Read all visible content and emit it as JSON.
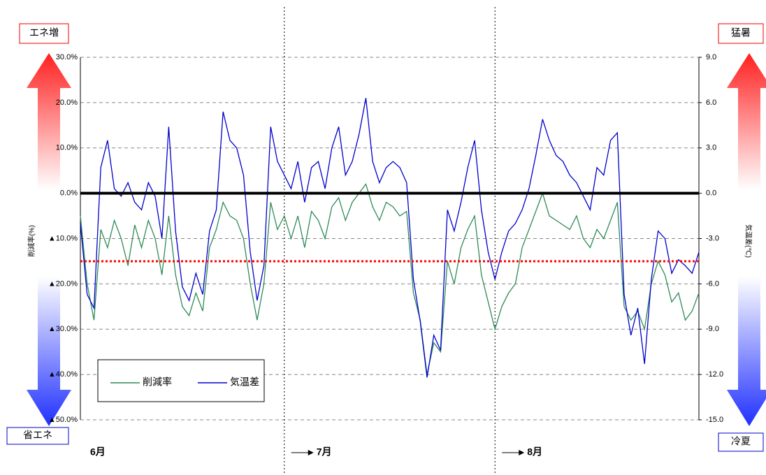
{
  "chart_data": {
    "type": "line",
    "ylabel": "削減率(%)",
    "y2label": "気温差(℃)",
    "ylim": [
      -50,
      30
    ],
    "yticks": [
      {
        "value": 30,
        "label": "30.0%"
      },
      {
        "value": 20,
        "label": "20.0%"
      },
      {
        "value": 10,
        "label": "10.0%"
      },
      {
        "value": 0,
        "label": "0.0%"
      },
      {
        "value": -10,
        "label": "▲10.0%"
      },
      {
        "value": -20,
        "label": "▲20.0%"
      },
      {
        "value": -30,
        "label": "▲30.0%"
      },
      {
        "value": -40,
        "label": "▲40.0%"
      },
      {
        "value": -50,
        "label": "▲50.0%"
      }
    ],
    "y2lim": [
      -15,
      9
    ],
    "y2ticks": [
      {
        "value": 9,
        "label": "9.0"
      },
      {
        "value": 6,
        "label": "6.0"
      },
      {
        "value": 3,
        "label": "3.0"
      },
      {
        "value": 0,
        "label": "0.0"
      },
      {
        "value": -3,
        "label": "-3.0"
      },
      {
        "value": -6,
        "label": "-6.0"
      },
      {
        "value": -9,
        "label": "-9.0"
      },
      {
        "value": -12,
        "label": "-12.0"
      },
      {
        "value": -15,
        "label": "-15.0"
      }
    ],
    "grid": true,
    "legend": "lower left",
    "months": [
      {
        "label": "6月",
        "start": 0
      },
      {
        "label": "7月",
        "start": 30
      },
      {
        "label": "8月",
        "start": 61
      }
    ],
    "hlines": [
      {
        "value": 0,
        "color": "#000000",
        "style": "solid"
      },
      {
        "value": -15,
        "color": "#ff0000",
        "style": "dotted"
      }
    ],
    "side_labels": {
      "top_left": "エネ増",
      "bottom_left": "省エネ",
      "top_right": "猛暑",
      "bottom_right": "冷夏"
    },
    "series": [
      {
        "name": "削減率",
        "color": "#2e8b57",
        "values": [
          -5,
          -20,
          -28,
          -8,
          -12,
          -6,
          -10,
          -16,
          -7,
          -12,
          -6,
          -10,
          -18,
          -5,
          -18,
          -25,
          -27,
          -22,
          -26,
          -12,
          -8,
          -2,
          -5,
          -6,
          -10,
          -20,
          -28,
          -20,
          -2,
          -8,
          -5,
          -10,
          -5,
          -12,
          -4,
          -6,
          -10,
          -3,
          -1,
          -6,
          -2,
          0,
          2,
          -3,
          -6,
          -2,
          -3,
          -5,
          -4,
          -22,
          -28,
          -40,
          -33,
          -35,
          -15,
          -20,
          -12,
          -8,
          -5,
          -18,
          -24,
          -30,
          -25,
          -22,
          -20,
          -12,
          -8,
          -4,
          0,
          -5,
          -6,
          -7,
          -8,
          -5,
          -10,
          -12,
          -8,
          -10,
          -6,
          -2,
          -25,
          -28,
          -26,
          -30,
          -20,
          -15,
          -18,
          -24,
          -22,
          -28,
          -26,
          -22
        ]
      },
      {
        "name": "気温差",
        "color": "#0000cc",
        "axis": "y2",
        "values": [
          -2.0,
          -6.7,
          -7.6,
          1.7,
          3.5,
          0.3,
          -0.2,
          0.7,
          -0.6,
          -1.1,
          0.7,
          -0.2,
          -3.0,
          4.4,
          -2.5,
          -6.2,
          -7.1,
          -5.3,
          -6.7,
          -2.5,
          -1.1,
          5.4,
          3.5,
          3.0,
          1.2,
          -3.9,
          -7.1,
          -4.8,
          4.4,
          2.1,
          1.2,
          0.3,
          2.1,
          -0.6,
          1.7,
          2.1,
          0.3,
          3.0,
          4.4,
          1.2,
          2.1,
          3.9,
          6.3,
          2.1,
          0.7,
          1.7,
          2.1,
          1.7,
          0.7,
          -5.7,
          -8.5,
          -12.2,
          -9.4,
          -10.4,
          -1.1,
          -2.5,
          -0.6,
          1.7,
          3.5,
          -1.1,
          -3.9,
          -5.7,
          -3.9,
          -2.5,
          -2.0,
          -1.1,
          0.3,
          2.5,
          4.9,
          3.5,
          2.5,
          2.1,
          1.2,
          0.7,
          -0.2,
          -1.1,
          1.7,
          1.2,
          3.5,
          4.0,
          -6.7,
          -9.4,
          -7.6,
          -11.3,
          -5.7,
          -2.5,
          -3.0,
          -5.3,
          -4.4,
          -4.8,
          -5.3,
          -3.9
        ]
      }
    ]
  }
}
